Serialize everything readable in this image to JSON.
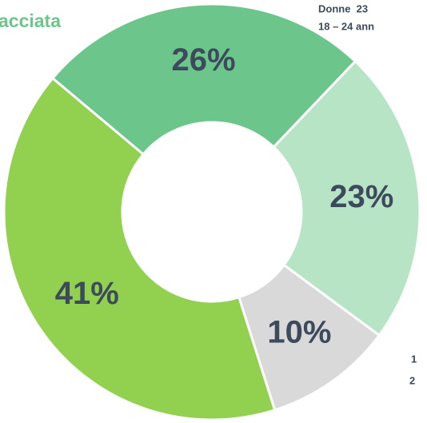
{
  "chart_data": {
    "type": "donut",
    "title": "acciata",
    "annotations": [
      "Donne  23",
      "18 – 24 ann",
      "1",
      "2"
    ],
    "categories": [
      null,
      null,
      null,
      null
    ],
    "values": [
      26,
      23,
      10,
      41
    ],
    "value_labels": [
      "26%",
      "23%",
      "10%",
      "41%"
    ],
    "colors": [
      "#6cc58a",
      "#b8e4c6",
      "#d9d9d9",
      "#92d050"
    ]
  }
}
